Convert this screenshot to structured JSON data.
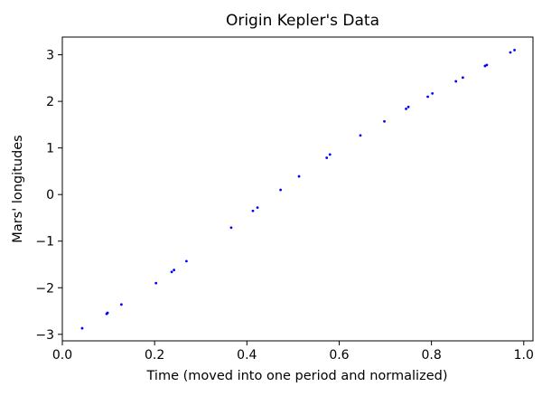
{
  "chart_data": {
    "type": "scatter",
    "title": "Origin Kepler's Data",
    "xlabel": "Time (moved into one period and normalized)",
    "ylabel": "Mars' longitudes",
    "xlim": [
      0.0,
      1.02
    ],
    "ylim": [
      -3.14,
      3.38
    ],
    "x_ticks": [
      0.0,
      0.2,
      0.4,
      0.6,
      0.8,
      1.0
    ],
    "x_tick_labels": [
      "0.0",
      "0.2",
      "0.4",
      "0.6",
      "0.8",
      "1.0"
    ],
    "y_ticks": [
      -3,
      -2,
      -1,
      0,
      1,
      2,
      3
    ],
    "y_tick_labels": [
      "−3",
      "−2",
      "−1",
      "0",
      "1",
      "2",
      "3"
    ],
    "grid": false,
    "legend": "none",
    "marker_color": "#0000ff",
    "series": [
      {
        "x": [
          0.043,
          0.096,
          0.098,
          0.128,
          0.203,
          0.237,
          0.242,
          0.269,
          0.366,
          0.413,
          0.423,
          0.473,
          0.513,
          0.573,
          0.58,
          0.646,
          0.698,
          0.745,
          0.75,
          0.792,
          0.802,
          0.853,
          0.868,
          0.916,
          0.92,
          0.971,
          0.98
        ],
        "y": [
          -2.87,
          -2.56,
          -2.54,
          -2.36,
          -1.9,
          -1.66,
          -1.62,
          -1.43,
          -0.71,
          -0.35,
          -0.28,
          0.1,
          0.39,
          0.79,
          0.86,
          1.27,
          1.57,
          1.84,
          1.88,
          2.1,
          2.17,
          2.43,
          2.51,
          2.76,
          2.78,
          3.05,
          3.1
        ]
      }
    ]
  }
}
